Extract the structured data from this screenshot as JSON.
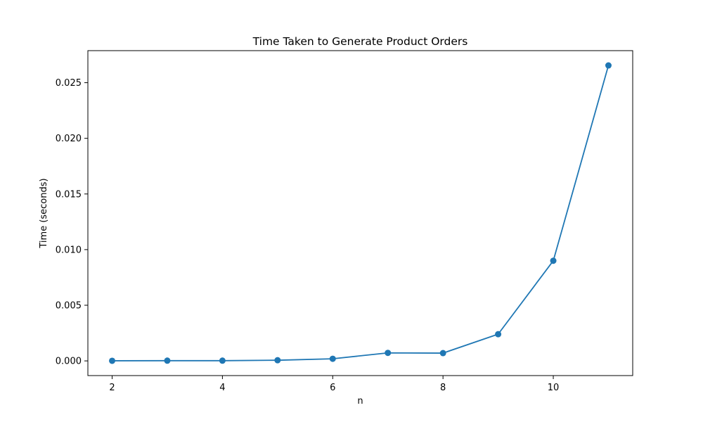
{
  "chart_data": {
    "type": "line",
    "title": "Time Taken to Generate Product Orders",
    "xlabel": "n",
    "ylabel": "Time (seconds)",
    "x": [
      2,
      3,
      4,
      5,
      6,
      7,
      8,
      9,
      10,
      11
    ],
    "series": [
      {
        "values": [
          1e-05,
          2e-05,
          2e-05,
          6e-05,
          0.00019,
          0.00072,
          0.0007,
          0.0024,
          0.009,
          0.02655
        ],
        "color": "#1f77b4",
        "marker": "circle"
      }
    ],
    "xlim": [
      1.56,
      11.44
    ],
    "ylim": [
      -0.00132,
      0.02788
    ],
    "xticks": [
      2,
      4,
      6,
      8,
      10
    ],
    "xtick_labels": [
      "2",
      "4",
      "6",
      "8",
      "10"
    ],
    "yticks": [
      0.0,
      0.005,
      0.01,
      0.015,
      0.02,
      0.025
    ],
    "ytick_labels": [
      "0.000",
      "0.005",
      "0.010",
      "0.015",
      "0.020",
      "0.025"
    ],
    "grid": false,
    "legend": "none"
  }
}
